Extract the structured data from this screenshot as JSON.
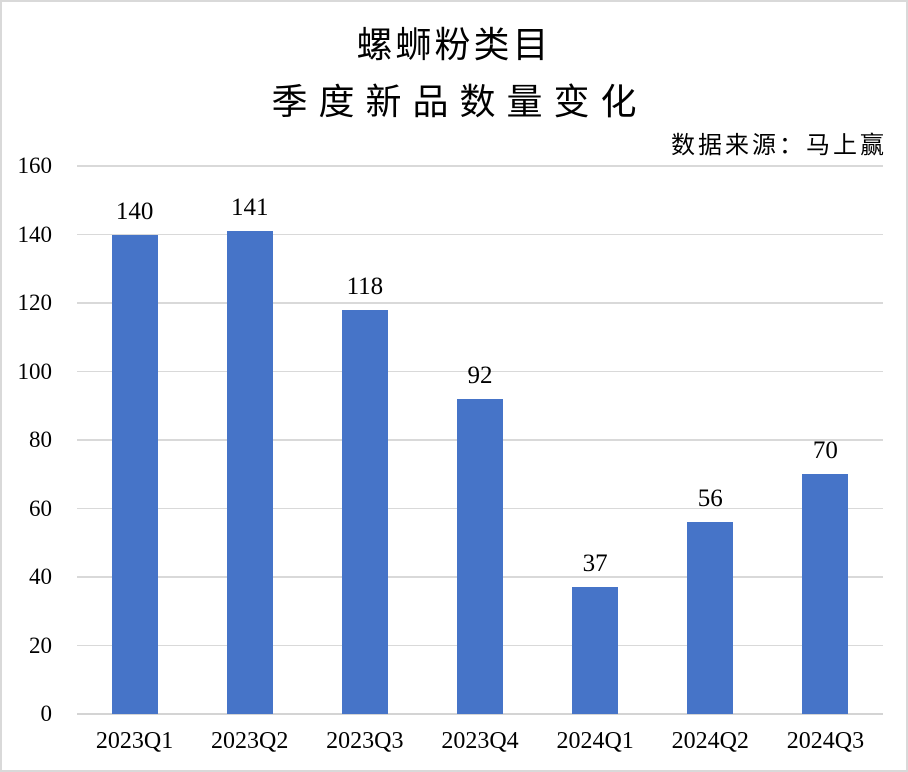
{
  "header": {
    "title_line1": "螺蛳粉类目",
    "title_line2": "季度新品数量变化",
    "source_note": "数据来源：马上赢"
  },
  "colors": {
    "bar": "#4674c8",
    "gridline": "#d9d9d9",
    "axis_line": "#d4d4d4",
    "border": "#d9d9d9",
    "text": "#000000",
    "background": "#ffffff"
  },
  "chart_data": {
    "type": "bar",
    "title": "螺蛳粉类目 季度新品数量变化",
    "source_annotation": "数据来源：马上赢",
    "categories": [
      "2023Q1",
      "2023Q2",
      "2023Q3",
      "2023Q4",
      "2024Q1",
      "2024Q2",
      "2024Q3"
    ],
    "values": [
      140,
      141,
      118,
      92,
      37,
      56,
      70
    ],
    "data_labels": [
      "140",
      "141",
      "118",
      "92",
      "37",
      "56",
      "70"
    ],
    "xlabel": "",
    "ylabel": "",
    "ylim": [
      0,
      160
    ],
    "yticks": [
      0,
      20,
      40,
      60,
      80,
      100,
      120,
      140,
      160
    ],
    "grid": true,
    "legend": "none",
    "bar_gap_ratio": 0.6,
    "bar_color": "#4674c8"
  }
}
